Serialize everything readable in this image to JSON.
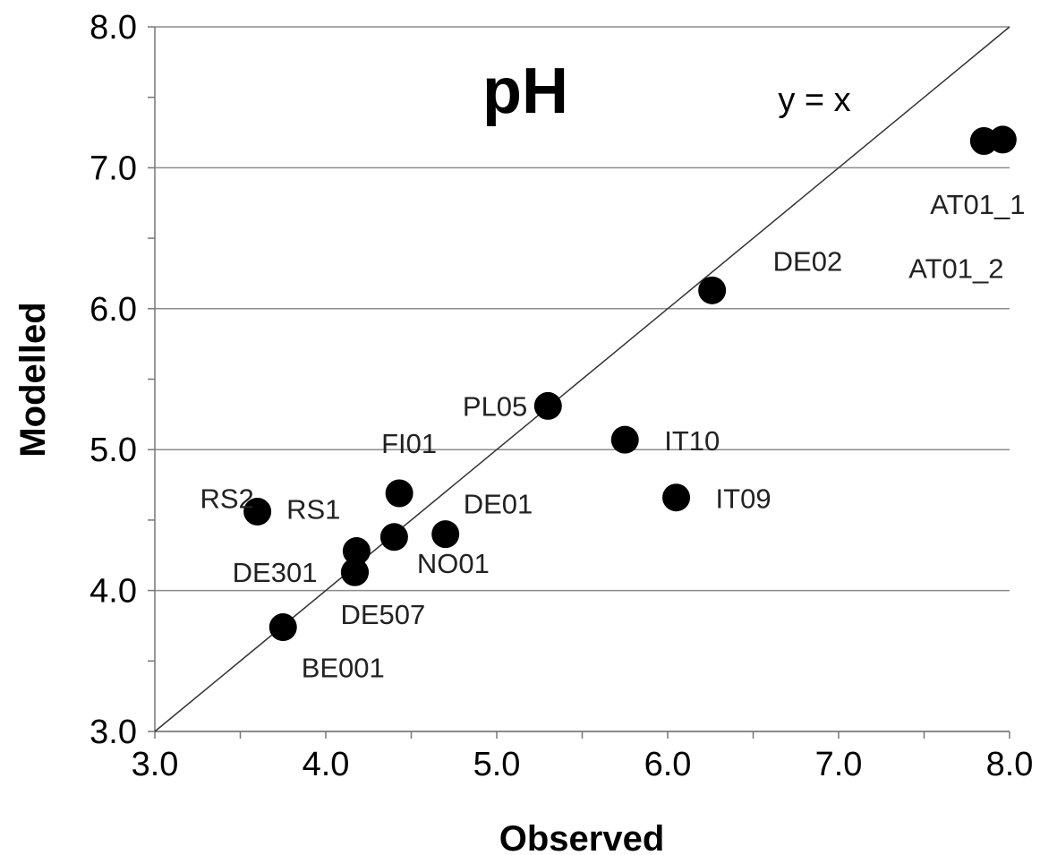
{
  "chart_data": {
    "type": "scatter",
    "title": "pH",
    "xlabel": "Observed",
    "ylabel": "Modelled",
    "xlim": [
      3.0,
      8.0
    ],
    "ylim": [
      3.0,
      8.0
    ],
    "x_ticks": [
      "3.0",
      "4.0",
      "5.0",
      "6.0",
      "7.0",
      "8.0"
    ],
    "y_ticks": [
      "3.0",
      "4.0",
      "5.0",
      "6.0",
      "7.0",
      "8.0"
    ],
    "grid": "horizontal",
    "reference_line": {
      "label": "y = x"
    },
    "points": [
      {
        "label": "RS2",
        "x": 3.6,
        "y": 4.56
      },
      {
        "label": "BE001",
        "x": 3.75,
        "y": 3.74
      },
      {
        "label": "RS1",
        "x": 4.18,
        "y": 4.28
      },
      {
        "label": "DE301",
        "x": 4.17,
        "y": 4.13
      },
      {
        "label": "DE507",
        "x": 4.17,
        "y": 4.13
      },
      {
        "label": "FI01",
        "x": 4.43,
        "y": 4.69
      },
      {
        "label": "NO01",
        "x": 4.4,
        "y": 4.38
      },
      {
        "label": "DE01",
        "x": 4.7,
        "y": 4.4
      },
      {
        "label": "PL05",
        "x": 5.3,
        "y": 5.31
      },
      {
        "label": "IT10",
        "x": 5.75,
        "y": 5.07
      },
      {
        "label": "IT09",
        "x": 6.05,
        "y": 4.66
      },
      {
        "label": "DE02",
        "x": 6.26,
        "y": 6.13
      },
      {
        "label": "AT01_1",
        "x": 7.96,
        "y": 7.2
      },
      {
        "label": "AT01_2",
        "x": 7.85,
        "y": 7.19
      }
    ]
  }
}
